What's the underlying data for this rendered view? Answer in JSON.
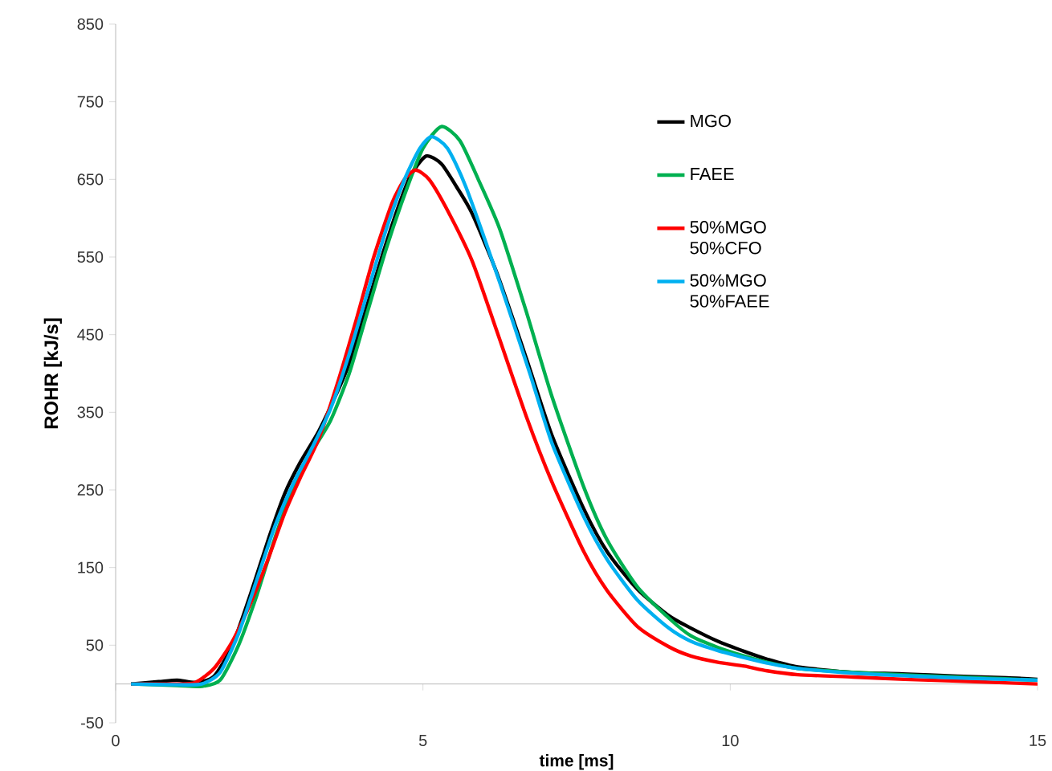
{
  "chart_data": {
    "type": "line",
    "xlabel": "time [ms]",
    "ylabel": "ROHR [kJ/s]",
    "xlim": [
      0,
      15
    ],
    "xticks": [
      0,
      5,
      10,
      15
    ],
    "ylim": [
      -50,
      850
    ],
    "yticks": [
      -50,
      50,
      150,
      250,
      350,
      450,
      550,
      650,
      750,
      850
    ],
    "grid": false,
    "legend": "top right",
    "marker": "none",
    "line_style": "solid",
    "series": [
      {
        "name": "MGO",
        "color": "#000000",
        "x": [
          0.25,
          0.7,
          1.0,
          1.3,
          1.6,
          1.9,
          2.2,
          2.5,
          2.75,
          3.0,
          3.3,
          3.6,
          3.8,
          4.1,
          4.35,
          4.6,
          4.8,
          5.05,
          5.3,
          5.55,
          5.8,
          6.2,
          6.68,
          7.1,
          7.62,
          8.0,
          8.49,
          9.0,
          9.36,
          9.8,
          10.23,
          10.6,
          11.1,
          11.97,
          12.8,
          13.7,
          14.5,
          15
        ],
        "values": [
          0,
          3,
          5,
          2,
          10,
          50,
          117,
          190,
          245,
          285,
          325,
          375,
          413,
          490,
          555,
          615,
          655,
          680,
          670,
          640,
          606,
          530,
          420,
          320,
          225,
          170,
          122,
          88,
          72,
          55,
          42,
          32,
          22,
          15,
          13,
          10,
          8,
          6
        ]
      },
      {
        "name": "FAEE",
        "color": "#00b050",
        "x": [
          0.25,
          1.0,
          1.4,
          1.7,
          2.0,
          2.3,
          2.6,
          2.9,
          3.2,
          3.5,
          3.8,
          4.1,
          4.4,
          4.7,
          5.0,
          5.3,
          5.6,
          5.9,
          6.25,
          6.68,
          7.1,
          7.62,
          8.0,
          8.49,
          9.0,
          9.36,
          9.8,
          10.23,
          10.6,
          11.1,
          12.0,
          13,
          14,
          15
        ],
        "values": [
          0,
          -2,
          -3,
          5,
          50,
          115,
          190,
          255,
          300,
          340,
          400,
          480,
          560,
          630,
          690,
          718,
          700,
          650,
          586,
          480,
          370,
          253,
          185,
          125,
          85,
          62,
          47,
          36,
          28,
          20,
          15,
          11,
          8,
          5
        ]
      },
      {
        "name": "50%MGO 50%CFO",
        "color": "#ff0000",
        "x": [
          0.25,
          1.0,
          1.3,
          1.6,
          1.9,
          2.2,
          2.5,
          2.75,
          3.0,
          3.3,
          3.6,
          3.9,
          4.2,
          4.5,
          4.7,
          4.88,
          5.1,
          5.4,
          5.8,
          6.2,
          6.68,
          7.1,
          7.62,
          8.0,
          8.49,
          9.0,
          9.36,
          9.8,
          10.23,
          10.6,
          11.1,
          12.0,
          12.84,
          14,
          15
        ],
        "values": [
          0,
          0,
          2,
          20,
          55,
          105,
          165,
          220,
          265,
          315,
          385,
          465,
          550,
          620,
          650,
          662,
          650,
          610,
          545,
          455,
          345,
          260,
          170,
          120,
          74,
          48,
          36,
          28,
          23,
          17,
          12,
          9,
          6,
          3,
          0
        ]
      },
      {
        "name": "50%MGO 50%FAEE",
        "color": "#00b0f0",
        "x": [
          0.25,
          1.0,
          1.4,
          1.7,
          2.0,
          2.3,
          2.6,
          2.9,
          3.2,
          3.5,
          3.8,
          4.1,
          4.4,
          4.7,
          4.95,
          5.14,
          5.4,
          5.7,
          6.25,
          6.74,
          7.1,
          7.62,
          8.0,
          8.49,
          9.0,
          9.36,
          9.8,
          10.23,
          10.6,
          11.1,
          12.0,
          13,
          14,
          15
        ],
        "values": [
          0,
          -1,
          0,
          15,
          65,
          135,
          205,
          260,
          305,
          355,
          425,
          505,
          585,
          650,
          690,
          705,
          690,
          640,
          517,
          400,
          310,
          215,
          160,
          108,
          72,
          55,
          43,
          34,
          27,
          20,
          14,
          10,
          7,
          5
        ]
      }
    ]
  }
}
